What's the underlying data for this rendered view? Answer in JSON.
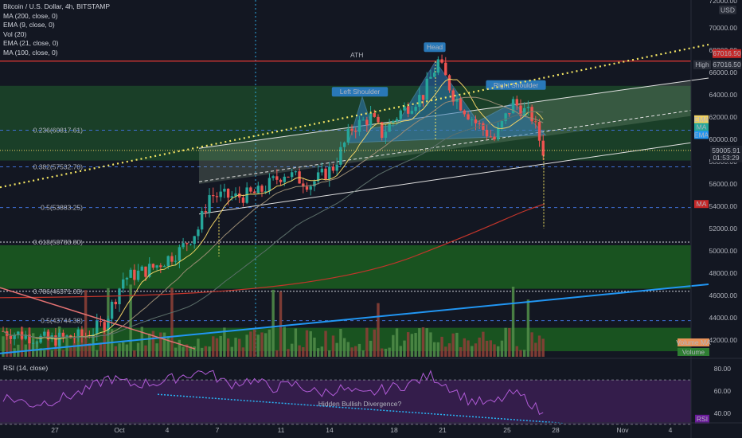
{
  "header": {
    "symbol": "Bitcoin / U.S. Dollar, 4h, BITSTAMP",
    "indicators": [
      "MA (200, close, 0)",
      "EMA (9, close, 0)",
      "Vol (20)",
      "EMA (21, close, 0)",
      "MA (100, close, 0)"
    ],
    "rsi": "RSI (14, close)"
  },
  "colors": {
    "background": "#131722",
    "up_candle": "#26a69a",
    "down_candle": "#ef5350",
    "zone_green": "#1b5e20",
    "ath_line": "#e53935",
    "dotted_trend": "#f5e663",
    "blue_trend": "#2196f3",
    "rsi_line": "#b05bd6",
    "rsi_band": "#3b1f52",
    "ma200": "#c2352b",
    "ema9": "#f0d264",
    "pattern_fill": "#2d78b4"
  },
  "chart_data": {
    "type": "candlestick",
    "title": "Bitcoin / U.S. Dollar, 4h, BITSTAMP",
    "x_ticks": [
      "27",
      "Oct",
      "4",
      "7",
      "11",
      "14",
      "18",
      "21",
      "25",
      "28",
      "Nov",
      "4"
    ],
    "y_ticks": [
      42000,
      44000,
      46000,
      48000,
      50000,
      52000,
      54000,
      56000,
      58000,
      60000,
      62000,
      64000,
      66000,
      68000,
      70000
    ],
    "y_top_label": "72000.00",
    "ylim": [
      40500,
      72500
    ],
    "currency": "USD",
    "ath": {
      "label": "ATH",
      "value": 67016.5,
      "value_text": "67016.50"
    },
    "high_tag": {
      "label": "High",
      "value_text": "67016.50"
    },
    "last_price": {
      "value": 59005.91,
      "text": "59005.91",
      "countdown": "01:53:29"
    },
    "fib_levels": [
      {
        "label": "0.236(60817.61)",
        "value": 60817.61
      },
      {
        "label": "0.382(57532.70)",
        "value": 57532.7
      },
      {
        "label": "0.5(53883.25)",
        "value": 53883.25
      },
      {
        "label": "0.618(50783.80)",
        "value": 50783.8
      },
      {
        "label": "0.786(46371.03)",
        "value": 46371.03
      },
      {
        "label": "0.5(43744.38)",
        "value": 43744.38
      }
    ],
    "pattern_labels": [
      "Left Shoulder",
      "Head",
      "Right Shoulder"
    ],
    "axis_tags": [
      "EMA",
      "MA",
      "EMA",
      "MA",
      "Volume MA",
      "Volume"
    ],
    "key_points": [
      {
        "t": 0,
        "price": 42800
      },
      {
        "t": 12,
        "price": 42000
      },
      {
        "t": 22,
        "price": 42400
      },
      {
        "t": 27,
        "price": 43500
      },
      {
        "t": 32,
        "price": 47500
      },
      {
        "t": 40,
        "price": 48500
      },
      {
        "t": 47,
        "price": 50000
      },
      {
        "t": 52,
        "price": 52000
      },
      {
        "t": 55,
        "price": 55000
      },
      {
        "t": 62,
        "price": 54800
      },
      {
        "t": 68,
        "price": 55200
      },
      {
        "t": 75,
        "price": 57000
      },
      {
        "t": 82,
        "price": 56000
      },
      {
        "t": 88,
        "price": 57500
      },
      {
        "t": 93,
        "price": 61000
      },
      {
        "t": 98,
        "price": 62000
      },
      {
        "t": 101,
        "price": 60500
      },
      {
        "t": 106,
        "price": 62500
      },
      {
        "t": 112,
        "price": 64000
      },
      {
        "t": 116,
        "price": 67000
      },
      {
        "t": 120,
        "price": 64000
      },
      {
        "t": 126,
        "price": 61500
      },
      {
        "t": 131,
        "price": 60000
      },
      {
        "t": 136,
        "price": 63300
      },
      {
        "t": 141,
        "price": 62000
      },
      {
        "t": 144,
        "price": 59000
      }
    ],
    "rsi": {
      "y_ticks": [
        40,
        60,
        80
      ],
      "y_tick_labels": [
        "40.00",
        "60.00",
        "80.00"
      ],
      "ylim": [
        32,
        88
      ],
      "badge": "RSI",
      "annotation": "Hidden Bullish Divergence?",
      "key_points": [
        {
          "t": 0,
          "v": 55
        },
        {
          "t": 8,
          "v": 48
        },
        {
          "t": 14,
          "v": 52
        },
        {
          "t": 22,
          "v": 60
        },
        {
          "t": 28,
          "v": 72
        },
        {
          "t": 34,
          "v": 66
        },
        {
          "t": 42,
          "v": 68
        },
        {
          "t": 48,
          "v": 74
        },
        {
          "t": 54,
          "v": 78
        },
        {
          "t": 60,
          "v": 66
        },
        {
          "t": 66,
          "v": 70
        },
        {
          "t": 72,
          "v": 63
        },
        {
          "t": 78,
          "v": 66
        },
        {
          "t": 84,
          "v": 58
        },
        {
          "t": 90,
          "v": 62
        },
        {
          "t": 96,
          "v": 56
        },
        {
          "t": 102,
          "v": 62
        },
        {
          "t": 108,
          "v": 66
        },
        {
          "t": 114,
          "v": 74
        },
        {
          "t": 118,
          "v": 66
        },
        {
          "t": 124,
          "v": 52
        },
        {
          "t": 130,
          "v": 48
        },
        {
          "t": 136,
          "v": 58
        },
        {
          "t": 140,
          "v": 52
        },
        {
          "t": 144,
          "v": 38
        }
      ]
    }
  }
}
